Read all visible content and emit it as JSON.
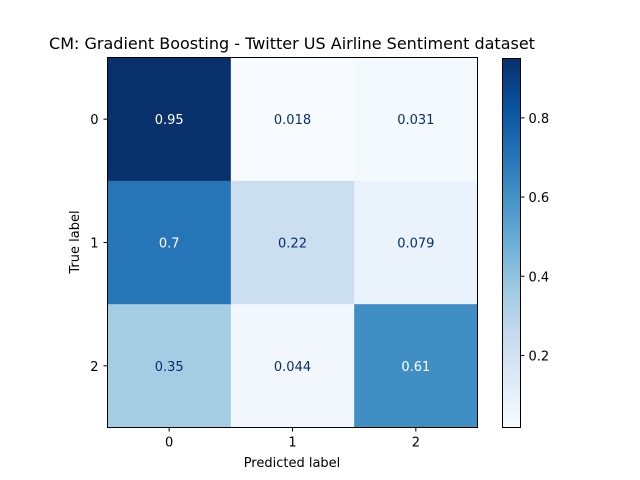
{
  "chart_data": {
    "type": "heatmap",
    "title": "CM: Gradient Boosting - Twitter US Airline Sentiment dataset",
    "xlabel": "Predicted label",
    "ylabel": "True label",
    "x_categories": [
      "0",
      "1",
      "2"
    ],
    "y_categories": [
      "0",
      "1",
      "2"
    ],
    "values": [
      [
        0.95,
        0.018,
        0.031
      ],
      [
        0.7,
        0.22,
        0.079
      ],
      [
        0.35,
        0.044,
        0.61
      ]
    ],
    "cell_labels": [
      [
        "0.95",
        "0.018",
        "0.031"
      ],
      [
        "0.7",
        "0.22",
        "0.079"
      ],
      [
        "0.35",
        "0.044",
        "0.61"
      ]
    ],
    "colormap": "Blues",
    "colorbar": {
      "range": [
        0.018,
        0.95
      ],
      "ticks": [
        0.2,
        0.4,
        0.6,
        0.8
      ],
      "tick_labels": [
        "0.2",
        "0.4",
        "0.6",
        "0.8"
      ]
    },
    "grid": false,
    "text_color_light": "#ffffff",
    "text_color_dark": "#08306b"
  }
}
